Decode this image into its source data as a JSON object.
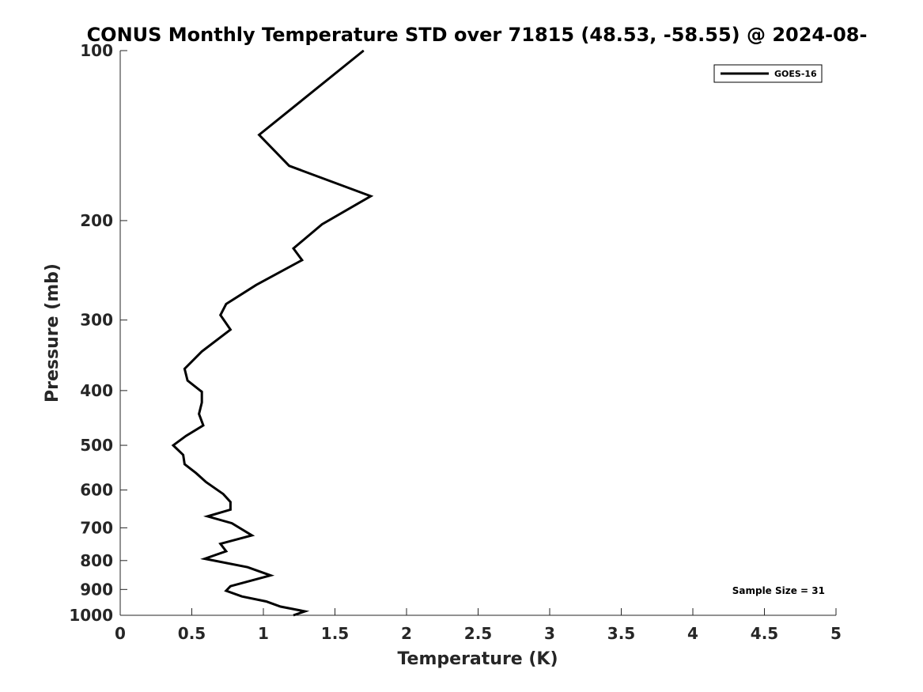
{
  "chart_data": {
    "type": "line",
    "title": "CONUS Monthly Temperature STD over 71815 (48.53, -58.55) @ 2024-08-",
    "xlabel": "Temperature (K)",
    "ylabel": "Pressure (mb)",
    "xlim": [
      0,
      5
    ],
    "ylim": [
      1000,
      100
    ],
    "y_scale": "log",
    "grid": false,
    "legend_position": "top-right",
    "x_ticks": [
      0,
      0.5,
      1,
      1.5,
      2,
      2.5,
      3,
      3.5,
      4,
      4.5,
      5
    ],
    "x_tick_labels": [
      "0",
      "0.5",
      "1",
      "1.5",
      "2",
      "2.5",
      "3",
      "3.5",
      "4",
      "4.5",
      "5"
    ],
    "y_ticks": [
      100,
      200,
      300,
      400,
      500,
      600,
      700,
      800,
      900,
      1000
    ],
    "y_tick_labels": [
      "100",
      "200",
      "300",
      "400",
      "500",
      "600",
      "700",
      "800",
      "900",
      "1000"
    ],
    "series": [
      {
        "name": "GOES-16",
        "color": "#000000",
        "x": [
          1.7,
          0.97,
          1.18,
          1.75,
          1.41,
          1.21,
          1.27,
          0.95,
          0.74,
          0.7,
          0.77,
          0.57,
          0.45,
          0.47,
          0.57,
          0.57,
          0.55,
          0.58,
          0.46,
          0.37,
          0.44,
          0.45,
          0.53,
          0.6,
          0.72,
          0.77,
          0.77,
          0.61,
          0.78,
          0.92,
          0.7,
          0.74,
          0.59,
          0.89,
          1.05,
          0.77,
          0.74,
          0.85,
          1.02,
          1.12,
          1.29,
          1.21
        ],
        "y": [
          100,
          141,
          160,
          181,
          203,
          224,
          235,
          260,
          281,
          294,
          312,
          341,
          366,
          384,
          402,
          420,
          440,
          461,
          481,
          500,
          520,
          540,
          560,
          581,
          610,
          630,
          650,
          668,
          687,
          722,
          747,
          770,
          794,
          822,
          850,
          888,
          905,
          926,
          945,
          965,
          984,
          1000
        ]
      }
    ],
    "annotations": [
      "Sample Size = 31"
    ]
  }
}
